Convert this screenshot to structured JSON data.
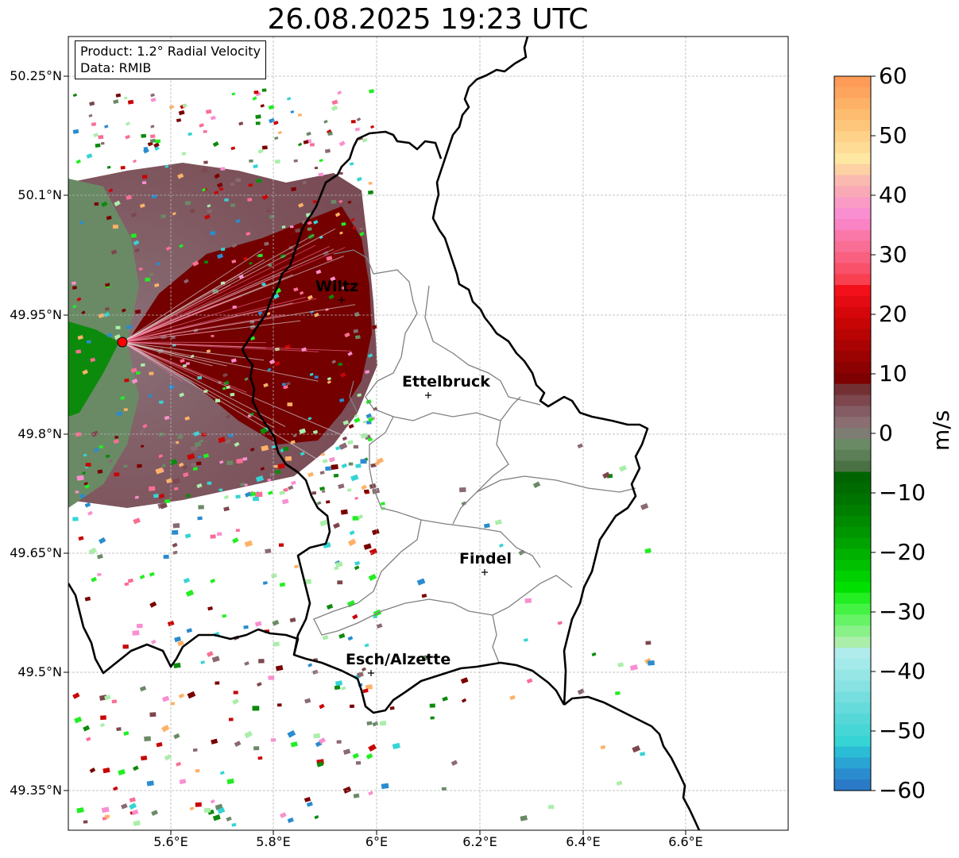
{
  "title": "26.08.2025 19:23 UTC",
  "info": {
    "product": "Product: 1.2° Radial Velocity",
    "data": "Data: RMIB"
  },
  "axes": {
    "lat_ticks": [
      "50.25°N",
      "50.1°N",
      "49.95°N",
      "49.8°N",
      "49.65°N",
      "49.5°N",
      "49.35°N"
    ],
    "lon_ticks": [
      "5.6°E",
      "5.8°E",
      "6°E",
      "6.2°E",
      "6.4°E",
      "6.6°E"
    ]
  },
  "cities": [
    "Wiltz",
    "Ettelbruck",
    "Findel",
    "Esch/Alzette"
  ],
  "colorbar": {
    "label": "m/s",
    "ticks": [
      "60",
      "50",
      "40",
      "30",
      "20",
      "10",
      "0",
      "−10",
      "−20",
      "−30",
      "−40",
      "−50",
      "−60"
    ],
    "range": [
      -60,
      60
    ],
    "colors_top_to_bottom": [
      "#fd9b57",
      "#fda45e",
      "#fdb167",
      "#fdbc6f",
      "#fec67a",
      "#fed188",
      "#fedc95",
      "#fde7a2",
      "#fdd1a4",
      "#fbbab0",
      "#f9a9b6",
      "#f99bc4",
      "#f98fd0",
      "#f983c4",
      "#f978a8",
      "#f96e94",
      "#f96080",
      "#f95169",
      "#f94050",
      "#f4101a",
      "#e50b12",
      "#d6070b",
      "#c80505",
      "#b90404",
      "#aa0303",
      "#9b0202",
      "#8c0101",
      "#7e0101",
      "#733033",
      "#7d474d",
      "#845c64",
      "#8a6e72",
      "#7d7d73",
      "#6a8a66",
      "#5c7f58",
      "#4a7144",
      "#006400",
      "#006b00",
      "#007400",
      "#007e00",
      "#008a00",
      "#009600",
      "#00a300",
      "#00b100",
      "#00c000",
      "#00d000",
      "#00e000",
      "#22ee22",
      "#44f244",
      "#66f466",
      "#88f288",
      "#aaeeaa",
      "#b0ecec",
      "#a4eaea",
      "#96e6e6",
      "#88e2e2",
      "#76dede",
      "#66dbdb",
      "#56d8d8",
      "#46d6d6",
      "#36d4d4",
      "#2bbcd6",
      "#2aa4d2",
      "#2a8cce",
      "#2a7ac8"
    ]
  },
  "radar_site": {
    "color": "#ff0000"
  },
  "colors": {
    "border": "#000000",
    "canton": "#808080",
    "grid": "#b0b0b0",
    "dark_red": "#7a0000",
    "gray_mauve": "#8a6a70",
    "gray_green": "#6a8a66",
    "green": "#008a00"
  }
}
